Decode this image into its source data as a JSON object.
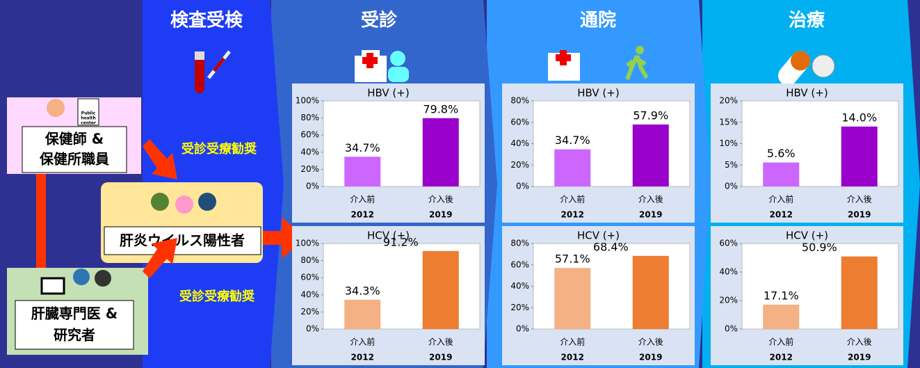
{
  "stages": [
    "検査受検",
    "受診",
    "通院",
    "治療"
  ],
  "actors": {
    "public_health": [
      "保健師 &",
      "保健所職員"
    ],
    "patients": "肝炎ウイルス陽性者",
    "specialists": [
      "肝臓専門医 &",
      "研究者"
    ]
  },
  "icon_text": [
    "Public",
    "health",
    "center"
  ],
  "promotions": [
    "受診受療勧奨",
    "受診受療勧奨"
  ],
  "chart_data": [
    {
      "type": "bar",
      "title": "HBV (+)",
      "categories": [
        "介入前",
        "介入後"
      ],
      "years": [
        "2012",
        "2019"
      ],
      "values": [
        34.7,
        79.8
      ],
      "value_labels": [
        "34.7%",
        "79.8%"
      ],
      "colors": [
        "#cc66ff",
        "#9900cc"
      ],
      "ylim": [
        0,
        100
      ],
      "yticks": [
        {
          "value": 0,
          "label": "0%"
        },
        {
          "value": 20,
          "label": "20%"
        },
        {
          "value": 40,
          "label": "40%"
        },
        {
          "value": 60,
          "label": "60%"
        },
        {
          "value": 80,
          "label": "80%"
        },
        {
          "value": 100,
          "label": "100%"
        }
      ]
    },
    {
      "type": "bar",
      "title": "HCV (+)",
      "categories": [
        "介入前",
        "介入後"
      ],
      "years": [
        "2012",
        "2019"
      ],
      "values": [
        34.3,
        91.2
      ],
      "value_labels": [
        "34.3%",
        "91.2%"
      ],
      "colors": [
        "#f4b183",
        "#ed7d31"
      ],
      "ylim": [
        0,
        100
      ],
      "yticks": [
        {
          "value": 0,
          "label": "0%"
        },
        {
          "value": 20,
          "label": "20%"
        },
        {
          "value": 40,
          "label": "40%"
        },
        {
          "value": 60,
          "label": "60%"
        },
        {
          "value": 80,
          "label": "80%"
        },
        {
          "value": 100,
          "label": "100%"
        }
      ]
    },
    {
      "type": "bar",
      "title": "HBV (+)",
      "categories": [
        "介入前",
        "介入後"
      ],
      "years": [
        "2012",
        "2019"
      ],
      "values": [
        34.7,
        57.9
      ],
      "value_labels": [
        "34.7%",
        "57.9%"
      ],
      "colors": [
        "#cc66ff",
        "#9900cc"
      ],
      "ylim": [
        0,
        80
      ],
      "yticks": [
        {
          "value": 0,
          "label": "0%"
        },
        {
          "value": 20,
          "label": "20%"
        },
        {
          "value": 40,
          "label": "40%"
        },
        {
          "value": 60,
          "label": "60%"
        },
        {
          "value": 80,
          "label": "80%"
        }
      ]
    },
    {
      "type": "bar",
      "title": "HCV (+)",
      "categories": [
        "介入前",
        "介入後"
      ],
      "years": [
        "2012",
        "2019"
      ],
      "values": [
        57.1,
        68.4
      ],
      "value_labels": [
        "57.1%",
        "68.4%"
      ],
      "colors": [
        "#f4b183",
        "#ed7d31"
      ],
      "ylim": [
        0,
        80
      ],
      "yticks": [
        {
          "value": 0,
          "label": "0%"
        },
        {
          "value": 20,
          "label": "20%"
        },
        {
          "value": 40,
          "label": "40%"
        },
        {
          "value": 60,
          "label": "60%"
        },
        {
          "value": 80,
          "label": "80%"
        }
      ]
    },
    {
      "type": "bar",
      "title": "HBV (+)",
      "categories": [
        "介入前",
        "介入後"
      ],
      "years": [
        "2012",
        "2019"
      ],
      "values": [
        5.6,
        14.0
      ],
      "value_labels": [
        "5.6%",
        "14.0%"
      ],
      "colors": [
        "#cc66ff",
        "#9900cc"
      ],
      "ylim": [
        0,
        20
      ],
      "yticks": [
        {
          "value": 0,
          "label": "0%"
        },
        {
          "value": 5,
          "label": "5%"
        },
        {
          "value": 10,
          "label": "10%"
        },
        {
          "value": 15,
          "label": "15%"
        },
        {
          "value": 20,
          "label": "20%"
        }
      ]
    },
    {
      "type": "bar",
      "title": "HCV (+)",
      "categories": [
        "介入前",
        "介入後"
      ],
      "years": [
        "2012",
        "2019"
      ],
      "values": [
        17.1,
        50.9
      ],
      "value_labels": [
        "17.1%",
        "50.9%"
      ],
      "colors": [
        "#f4b183",
        "#ed7d31"
      ],
      "ylim": [
        0,
        60
      ],
      "yticks": [
        {
          "value": 0,
          "label": "0%"
        },
        {
          "value": 20,
          "label": "20%"
        },
        {
          "value": 40,
          "label": "40%"
        },
        {
          "value": 60,
          "label": "60%"
        }
      ]
    }
  ]
}
